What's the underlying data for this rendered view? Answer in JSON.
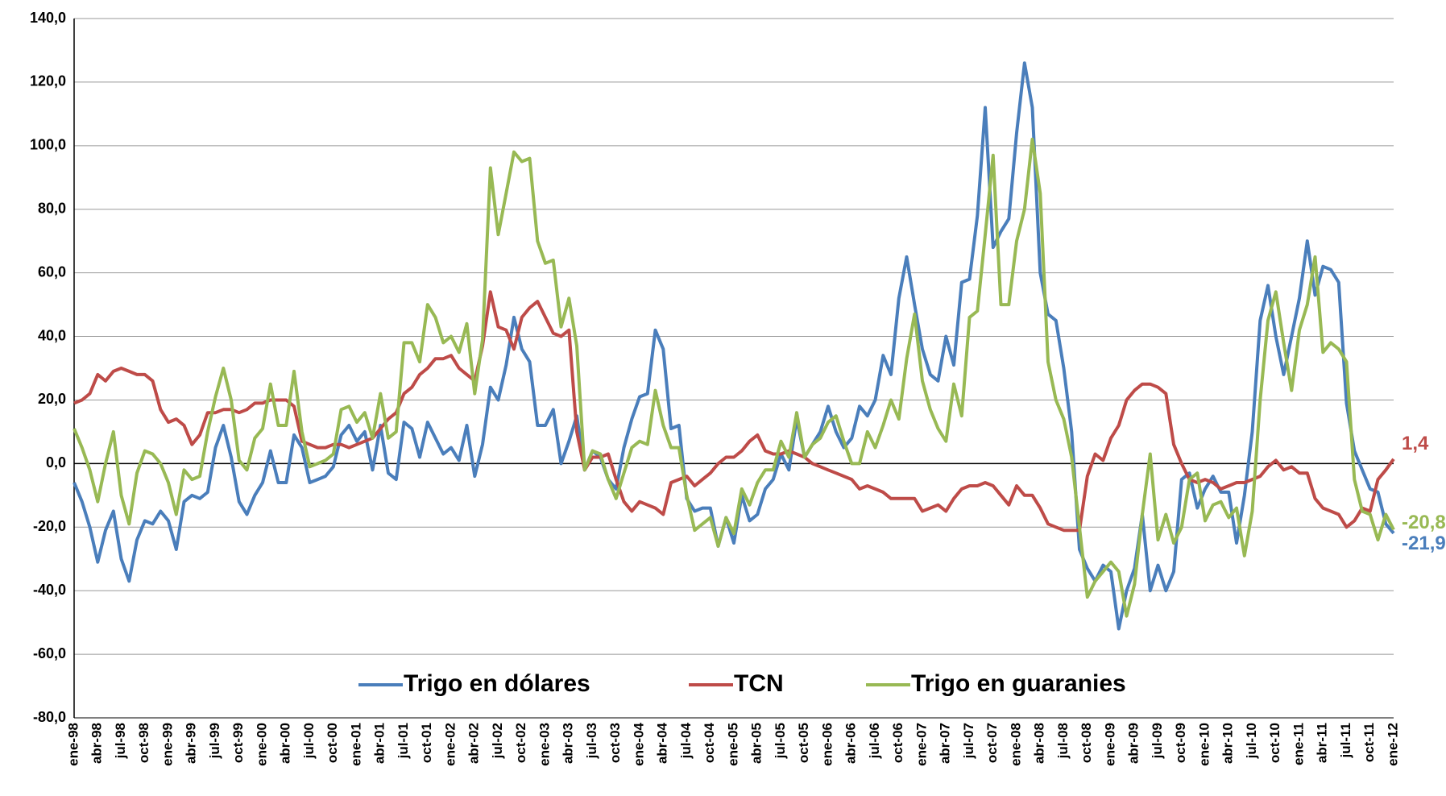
{
  "chart_data": {
    "type": "line",
    "categories": [
      "ene-98",
      null,
      null,
      "abr-98",
      null,
      null,
      "jul-98",
      null,
      null,
      "oct-98",
      null,
      null,
      "ene-99",
      null,
      null,
      "abr-99",
      null,
      null,
      "jul-99",
      null,
      null,
      "oct-99",
      null,
      null,
      "ene-00",
      null,
      null,
      "abr-00",
      null,
      null,
      "jul-00",
      null,
      null,
      "oct-00",
      null,
      null,
      "ene-01",
      null,
      null,
      "abr-01",
      null,
      null,
      "jul-01",
      null,
      null,
      "oct-01",
      null,
      null,
      "ene-02",
      null,
      null,
      "abr-02",
      null,
      null,
      "jul-02",
      null,
      null,
      "oct-02",
      null,
      null,
      "ene-03",
      null,
      null,
      "abr-03",
      null,
      null,
      "jul-03",
      null,
      null,
      "oct-03",
      null,
      null,
      "ene-04",
      null,
      null,
      "abr-04",
      null,
      null,
      "jul-04",
      null,
      null,
      "oct-04",
      null,
      null,
      "ene-05",
      null,
      null,
      "abr-05",
      null,
      null,
      "jul-05",
      null,
      null,
      "oct-05",
      null,
      null,
      "ene-06",
      null,
      null,
      "abr-06",
      null,
      null,
      "jul-06",
      null,
      null,
      "oct-06",
      null,
      null,
      "ene-07",
      null,
      null,
      "abr-07",
      null,
      null,
      "jul-07",
      null,
      null,
      "oct-07",
      null,
      null,
      "ene-08",
      null,
      null,
      "abr-08",
      null,
      null,
      "jul-08",
      null,
      null,
      "oct-08",
      null,
      null,
      "ene-09",
      null,
      null,
      "abr-09",
      null,
      null,
      "jul-09",
      null,
      null,
      "oct-09",
      null,
      null,
      "ene-10",
      null,
      null,
      "abr-10",
      null,
      null,
      "jul-10",
      null,
      null,
      "oct-10",
      null,
      null,
      "ene-11",
      null,
      null,
      "abr-11",
      null,
      null,
      "jul-11",
      null,
      null,
      "oct-11",
      null,
      null,
      "ene-12"
    ],
    "series": [
      {
        "name": "Trigo en dólares",
        "color": "#4a7ebb",
        "end_label": "-21,9",
        "values": [
          -6,
          -12,
          -20,
          -31,
          -21,
          -15,
          -30,
          -37,
          -24,
          -18,
          -19,
          -15,
          -18,
          -27,
          -12,
          -10,
          -11,
          -9,
          5,
          12,
          2,
          -12,
          -16,
          -10,
          -6,
          4,
          -6,
          -6,
          9,
          5,
          -6,
          -5,
          -4,
          -1,
          9,
          12,
          7,
          10,
          -2,
          12,
          -3,
          -5,
          13,
          11,
          2,
          13,
          8,
          3,
          5,
          1,
          12,
          -4,
          6,
          24,
          20,
          31,
          46,
          36,
          32,
          12,
          12,
          17,
          0,
          7,
          15,
          -2,
          4,
          2,
          -5,
          -8,
          5,
          14,
          21,
          22,
          42,
          36,
          11,
          12,
          -11,
          -15,
          -14,
          -14,
          -26,
          -17,
          -25,
          -10,
          -18,
          -16,
          -8,
          -5,
          3,
          -2,
          14,
          2,
          6,
          10,
          18,
          10,
          5,
          8,
          18,
          15,
          20,
          34,
          28,
          52,
          65,
          50,
          36,
          28,
          26,
          40,
          31,
          57,
          58,
          78,
          112,
          68,
          73,
          77,
          104,
          126,
          112,
          60,
          47,
          45,
          30,
          10,
          -27,
          -33,
          -37,
          -32,
          -34,
          -52,
          -40,
          -33,
          -16,
          -40,
          -32,
          -40,
          -34,
          -5,
          -3,
          -14,
          -8,
          -4,
          -9,
          -9,
          -25,
          -10,
          10,
          45,
          56,
          40,
          28,
          40,
          52,
          70,
          53,
          62,
          61,
          57,
          19,
          4,
          -2,
          -8,
          -9,
          -19,
          -21.9
        ]
      },
      {
        "name": "TCN",
        "color": "#be4b48",
        "end_label": "1,4",
        "values": [
          19,
          20,
          22,
          28,
          26,
          29,
          30,
          29,
          28,
          28,
          26,
          17,
          13,
          14,
          12,
          6,
          9,
          16,
          16,
          17,
          17,
          16,
          17,
          19,
          19,
          20,
          20,
          20,
          18,
          7,
          6,
          5,
          5,
          6,
          6,
          5,
          6,
          7,
          8,
          11,
          14,
          16,
          22,
          24,
          28,
          30,
          33,
          33,
          34,
          30,
          28,
          26,
          37,
          54,
          43,
          42,
          36,
          46,
          49,
          51,
          46,
          41,
          40,
          42,
          10,
          -2,
          2,
          2,
          3,
          -5,
          -12,
          -15,
          -12,
          -13,
          -14,
          -16,
          -6,
          -5,
          -4,
          -7,
          -5,
          -3,
          0,
          2,
          2,
          4,
          7,
          9,
          4,
          3,
          3,
          4,
          3,
          2,
          0,
          -1,
          -2,
          -3,
          -4,
          -5,
          -8,
          -7,
          -8,
          -9,
          -11,
          -11,
          -11,
          -11,
          -15,
          -14,
          -13,
          -15,
          -11,
          -8,
          -7,
          -7,
          -6,
          -7,
          -10,
          -13,
          -7,
          -10,
          -10,
          -14,
          -19,
          -20,
          -21,
          -21,
          -21,
          -4,
          3,
          1,
          8,
          12,
          20,
          23,
          25,
          25,
          24,
          22,
          6,
          0,
          -5,
          -6,
          -5,
          -6,
          -8,
          -7,
          -6,
          -6,
          -5,
          -4,
          -1,
          1,
          -2,
          -1,
          -3,
          -3,
          -11,
          -14,
          -15,
          -16,
          -20,
          -18,
          -14,
          -15,
          -5,
          -2,
          1.4
        ]
      },
      {
        "name": "Trigo en guaranies",
        "color": "#98b954",
        "end_label": "-20,8",
        "values": [
          11,
          5,
          -2,
          -12,
          0,
          10,
          -10,
          -19,
          -3,
          4,
          3,
          0,
          -6,
          -16,
          -2,
          -5,
          -4,
          10,
          21,
          30,
          20,
          1,
          -2,
          8,
          11,
          25,
          12,
          12,
          29,
          10,
          -1,
          0,
          1,
          3,
          17,
          18,
          13,
          16,
          8,
          22,
          8,
          10,
          38,
          38,
          32,
          50,
          46,
          38,
          40,
          35,
          44,
          22,
          39,
          93,
          72,
          85,
          98,
          95,
          96,
          70,
          63,
          64,
          43,
          52,
          37,
          -2,
          4,
          3,
          -5,
          -11,
          -3,
          5,
          7,
          6,
          23,
          12,
          5,
          5,
          -10,
          -21,
          -19,
          -17,
          -26,
          -17,
          -22,
          -8,
          -13,
          -6,
          -2,
          -2,
          7,
          2,
          16,
          2,
          6,
          8,
          13,
          15,
          7,
          0,
          0,
          10,
          5,
          12,
          20,
          14,
          33,
          47,
          26,
          17,
          11,
          7,
          25,
          15,
          46,
          48,
          72,
          97,
          50,
          50,
          70,
          80,
          102,
          85,
          32,
          20,
          14,
          2,
          -20,
          -42,
          -37,
          -34,
          -31,
          -34,
          -48,
          -38,
          -16,
          3,
          -24,
          -16,
          -25,
          -20,
          -5,
          -3,
          -18,
          -13,
          -12,
          -17,
          -14,
          -29,
          -15,
          20,
          45,
          54,
          38,
          23,
          42,
          50,
          65,
          35,
          38,
          36,
          32,
          -5,
          -15,
          -16,
          -24,
          -16,
          -20.8
        ]
      }
    ],
    "ylim": [
      -80,
      140
    ],
    "yticks": [
      {
        "value": -80,
        "label": "-80,0"
      },
      {
        "value": -60,
        "label": "-60,0"
      },
      {
        "value": -40,
        "label": "-40,0"
      },
      {
        "value": -20,
        "label": "-20,0"
      },
      {
        "value": 0,
        "label": "0,0"
      },
      {
        "value": 20,
        "label": "20,0"
      },
      {
        "value": 40,
        "label": "40,0"
      },
      {
        "value": 60,
        "label": "60,0"
      },
      {
        "value": 80,
        "label": "80,0"
      },
      {
        "value": 100,
        "label": "100,0"
      },
      {
        "value": 120,
        "label": "120,0"
      },
      {
        "value": 140,
        "label": "140,0"
      }
    ],
    "grid": true,
    "legend": "bottom"
  }
}
